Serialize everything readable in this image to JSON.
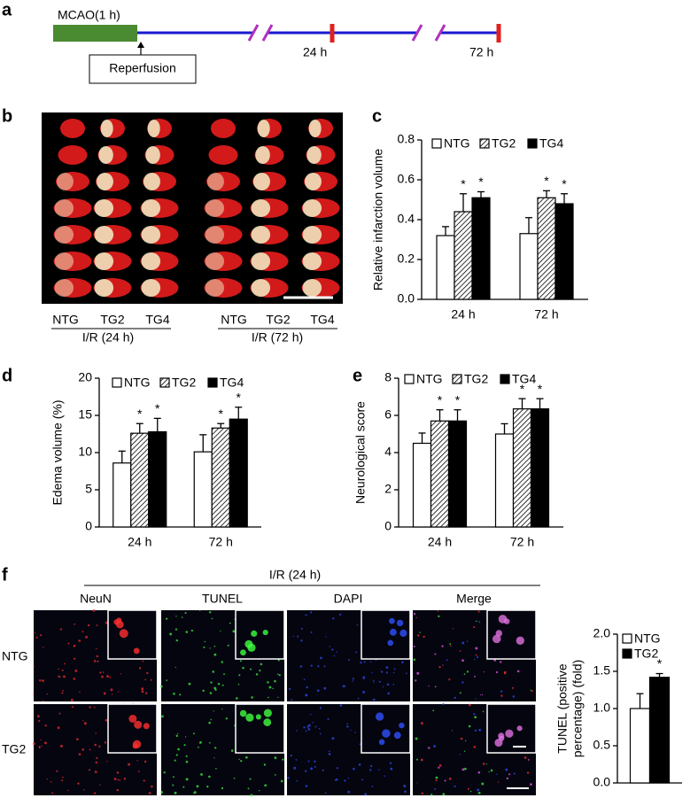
{
  "panel_labels": [
    "a",
    "b",
    "c",
    "d",
    "e",
    "f"
  ],
  "timeline": {
    "occlusion": "MCAO(1 h)",
    "reperfusion": "Reperfusion",
    "times": [
      "24 h",
      "72 h"
    ]
  },
  "ttc": {
    "groups": [
      "NTG",
      "TG2",
      "TG4"
    ],
    "conditions": [
      "I/R (24 h)",
      "I/R (72 h)"
    ]
  },
  "microscopy": {
    "title": "I/R (24 h)",
    "channels": [
      "NeuN",
      "TUNEL",
      "DAPI",
      "Merge"
    ],
    "rows": [
      "NTG",
      "TG2"
    ]
  },
  "chart_data": [
    {
      "type": "bar",
      "y_label": "Relative infarction volume",
      "categories": [
        "24 h",
        "72 h"
      ],
      "ylim": [
        0,
        0.8
      ],
      "yticks": [
        {
          "value": 0,
          "label": "0.0"
        },
        {
          "value": 0.2,
          "label": "0.2"
        },
        {
          "value": 0.4,
          "label": "0.4"
        },
        {
          "value": 0.6,
          "label": "0.6"
        },
        {
          "value": 0.8,
          "label": "0.8"
        }
      ],
      "series": [
        {
          "name": "NTG",
          "color": "#ffffff",
          "values": [
            0.32,
            0.33
          ],
          "errors": [
            0.045,
            0.08
          ]
        },
        {
          "name": "TG2",
          "color": "#ffffff",
          "hatch": true,
          "values": [
            0.44,
            0.51
          ],
          "errors": [
            0.09,
            0.035
          ],
          "sig": [
            "*",
            "*"
          ]
        },
        {
          "name": "TG4",
          "color": "#000000",
          "values": [
            0.51,
            0.48
          ],
          "errors": [
            0.03,
            0.05
          ],
          "sig": [
            "*",
            "*"
          ]
        }
      ]
    },
    {
      "type": "bar",
      "y_label": "Edema volume (%)",
      "categories": [
        "24 h",
        "72 h"
      ],
      "ylim": [
        0,
        20
      ],
      "yticks": [
        0,
        5,
        10,
        15,
        20
      ],
      "series": [
        {
          "name": "NTG",
          "color": "#ffffff",
          "values": [
            8.6,
            10.1
          ],
          "errors": [
            1.6,
            2.3
          ]
        },
        {
          "name": "TG2",
          "color": "#ffffff",
          "hatch": true,
          "values": [
            12.6,
            13.3
          ],
          "errors": [
            1.3,
            0.6
          ],
          "sig": [
            "*",
            "*"
          ]
        },
        {
          "name": "TG4",
          "color": "#000000",
          "values": [
            12.8,
            14.5
          ],
          "errors": [
            1.8,
            1.6
          ],
          "sig": [
            "*",
            "*"
          ]
        }
      ]
    },
    {
      "type": "bar",
      "y_label": "Neurological score",
      "categories": [
        "24 h",
        "72 h"
      ],
      "ylim": [
        0,
        8
      ],
      "yticks": [
        0,
        2,
        4,
        6,
        8
      ],
      "series": [
        {
          "name": "NTG",
          "color": "#ffffff",
          "values": [
            4.5,
            5.0
          ],
          "errors": [
            0.55,
            0.55
          ]
        },
        {
          "name": "TG2",
          "color": "#ffffff",
          "hatch": true,
          "values": [
            5.7,
            6.35
          ],
          "errors": [
            0.6,
            0.55
          ],
          "sig": [
            "*",
            "*"
          ]
        },
        {
          "name": "TG4",
          "color": "#000000",
          "values": [
            5.7,
            6.35
          ],
          "errors": [
            0.6,
            0.55
          ],
          "sig": [
            "*",
            "*"
          ]
        }
      ]
    },
    {
      "type": "bar",
      "y_label": [
        "TUNEL (positive",
        "percentage) (fold)"
      ],
      "categories": [
        null
      ],
      "ylim": [
        0,
        2
      ],
      "yticks": [
        {
          "value": 0,
          "label": "0.0"
        },
        {
          "value": 0.5,
          "label": "0.5"
        },
        {
          "value": 1,
          "label": "1.0"
        },
        {
          "value": 1.5,
          "label": "1.5"
        },
        {
          "value": 2,
          "label": "2.0"
        }
      ],
      "series": [
        {
          "name": "NTG",
          "color": "#ffffff",
          "values": [
            1.0
          ],
          "errors": [
            0.2
          ]
        },
        {
          "name": "TG2",
          "color": "#000000",
          "values": [
            1.42
          ],
          "errors": [
            0.05
          ],
          "sig": [
            "*"
          ]
        }
      ]
    }
  ]
}
